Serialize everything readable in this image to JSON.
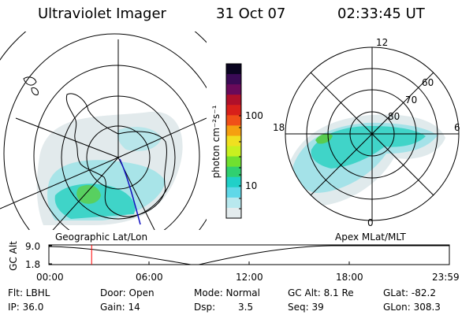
{
  "header": {
    "instrument": "Ultraviolet Imager",
    "date": "31 Oct 07",
    "time": "02:33:45 UT"
  },
  "left_map": {
    "label": "Geographic Lat/Lon"
  },
  "right_map": {
    "label": "Apex MLat/MLT",
    "mlt_labels": [
      "12",
      "18",
      "6",
      "0"
    ],
    "mlat_labels": [
      "60",
      "70",
      "80"
    ]
  },
  "colorbar": {
    "unit_label": "photon cm⁻²s⁻¹",
    "tick_labels": [
      "100",
      "10"
    ],
    "colors": [
      "#0a0420",
      "#3a0a55",
      "#6a0a5a",
      "#b0102a",
      "#d8201a",
      "#f05018",
      "#f5a010",
      "#f0e020",
      "#c8f020",
      "#70e030",
      "#30d070",
      "#20d0c8",
      "#60d8e8",
      "#b8e8ee",
      "#e4ecee"
    ]
  },
  "timeline": {
    "ylabel": "GC Alt",
    "ytick_top": "9.0",
    "ytick_bottom": "1.8",
    "x_ticks": [
      "00:00",
      "06:00",
      "12:00",
      "18:00",
      "23:59"
    ],
    "current_time_hours": 2.56,
    "marker_color": "#ff0000"
  },
  "info": {
    "filter": "Flt: LBHL",
    "ip": "IP: 36.0",
    "door": "Door: Open",
    "gain": "Gain: 14",
    "mode": "Mode: Normal",
    "dsp_label": "Dsp:",
    "dsp_value": "3.5",
    "gc_alt": "GC Alt: 8.1 Re",
    "seq": "Seq: 39",
    "glat": "GLat: -82.2",
    "glon": "GLon: 308.3"
  }
}
